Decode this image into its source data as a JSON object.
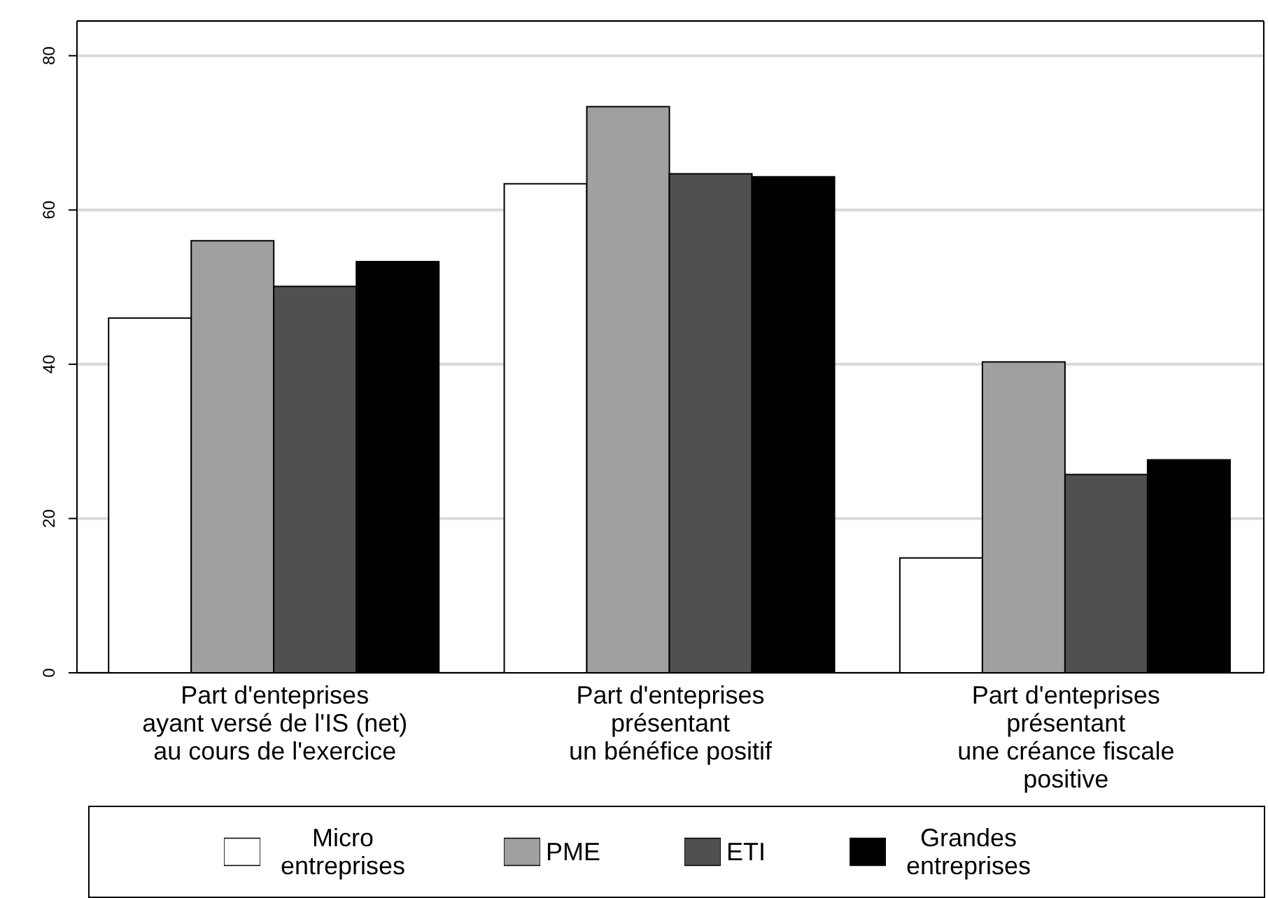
{
  "chart_data": {
    "type": "bar",
    "categories": [
      "Part d'enteprises\nayant versé de l'IS (net)\nau cours de l'exercice",
      "Part d'enteprises\nprésentant\nun bénéfice positif",
      "Part d'enteprises\nprésentant\nune créance fiscale\npositive"
    ],
    "series": [
      {
        "name": "Micro entreprises",
        "color": "#ffffff",
        "values": [
          46,
          63.4,
          14.9
        ]
      },
      {
        "name": "PME",
        "color": "#a0a0a0",
        "values": [
          56,
          73.4,
          40.3
        ]
      },
      {
        "name": "ETI",
        "color": "#505050",
        "values": [
          50.1,
          64.7,
          25.7
        ]
      },
      {
        "name": "Grandes entreprises",
        "color": "#000000",
        "values": [
          53.3,
          64.3,
          27.6
        ]
      }
    ],
    "ylim": [
      0,
      84.5
    ],
    "yticks": [
      0,
      20,
      40,
      60,
      80
    ],
    "grid": "y",
    "legend": "bottom"
  }
}
